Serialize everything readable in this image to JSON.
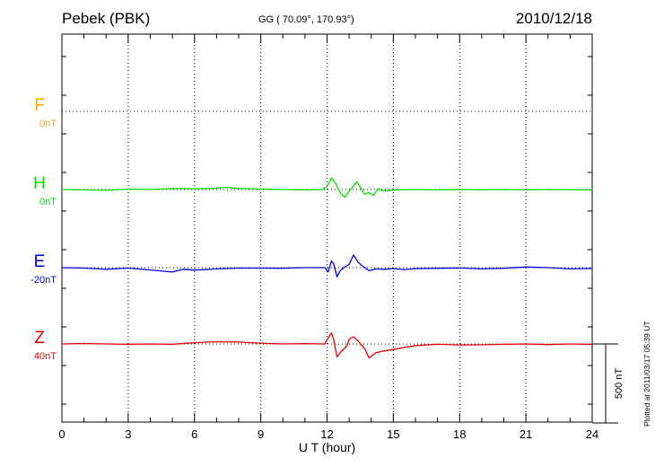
{
  "header": {
    "station": "Pebek (PBK)",
    "coords": "GG ( 70.09°, 170.93°)",
    "date": "2010/12/18"
  },
  "footer": {
    "plotted": "Plotted at 2011/03/17 05:39 UT"
  },
  "chart_data": {
    "type": "line",
    "xlabel": "U T (hour)",
    "xlim": [
      0,
      24
    ],
    "xticks": [
      0,
      3,
      6,
      9,
      12,
      15,
      18,
      21,
      24
    ],
    "scale_bar": {
      "label": "500 nT",
      "value_nT": 500
    },
    "series": [
      {
        "name": "F",
        "offset": "0nT",
        "color": "#FFA500",
        "values": []
      },
      {
        "name": "H",
        "offset": "0nT",
        "color": "#00E000",
        "points": [
          [
            0,
            0
          ],
          [
            2,
            -5
          ],
          [
            3,
            3
          ],
          [
            4,
            0
          ],
          [
            5,
            6
          ],
          [
            6,
            4
          ],
          [
            7,
            8
          ],
          [
            7.5,
            14
          ],
          [
            8,
            6
          ],
          [
            9,
            3
          ],
          [
            10,
            0
          ],
          [
            11,
            -3
          ],
          [
            11.8,
            0
          ],
          [
            12,
            20
          ],
          [
            12.2,
            72
          ],
          [
            12.4,
            36
          ],
          [
            12.6,
            -22
          ],
          [
            12.8,
            -50
          ],
          [
            13.0,
            -10
          ],
          [
            13.2,
            22
          ],
          [
            13.35,
            48
          ],
          [
            13.5,
            14
          ],
          [
            13.7,
            -30
          ],
          [
            13.9,
            -20
          ],
          [
            14.1,
            -38
          ],
          [
            14.3,
            4
          ],
          [
            14.5,
            -6
          ],
          [
            14.7,
            -8
          ],
          [
            15,
            -3
          ],
          [
            16,
            0
          ],
          [
            17,
            -3
          ],
          [
            18,
            0
          ],
          [
            19,
            -2
          ],
          [
            20,
            0
          ],
          [
            21,
            -2
          ],
          [
            22,
            0
          ],
          [
            24,
            -3
          ]
        ]
      },
      {
        "name": "E",
        "offset": "-20nT",
        "color": "#0000DD",
        "points": [
          [
            0,
            0
          ],
          [
            1,
            -3
          ],
          [
            2,
            -10
          ],
          [
            3,
            -3
          ],
          [
            4,
            -15
          ],
          [
            5,
            -28
          ],
          [
            5.5,
            -10
          ],
          [
            6,
            -16
          ],
          [
            7,
            -8
          ],
          [
            8,
            -3
          ],
          [
            9,
            -3
          ],
          [
            10,
            -4
          ],
          [
            11,
            0
          ],
          [
            11.9,
            0
          ],
          [
            12.05,
            -28
          ],
          [
            12.2,
            42
          ],
          [
            12.3,
            24
          ],
          [
            12.45,
            -58
          ],
          [
            12.6,
            -18
          ],
          [
            12.8,
            5
          ],
          [
            13,
            20
          ],
          [
            13.2,
            80
          ],
          [
            13.4,
            35
          ],
          [
            13.6,
            10
          ],
          [
            13.9,
            -20
          ],
          [
            14.2,
            -8
          ],
          [
            14.6,
            -10
          ],
          [
            15,
            -6
          ],
          [
            15.5,
            -12
          ],
          [
            16,
            -6
          ],
          [
            17,
            -4
          ],
          [
            18,
            -2
          ],
          [
            19,
            -8
          ],
          [
            20,
            -4
          ],
          [
            21,
            4
          ],
          [
            22,
            0
          ],
          [
            23,
            -8
          ],
          [
            24,
            -5
          ]
        ]
      },
      {
        "name": "Z",
        "offset": "40nT",
        "color": "#DD0000",
        "points": [
          [
            0,
            0
          ],
          [
            1,
            3
          ],
          [
            2,
            0
          ],
          [
            3,
            -2
          ],
          [
            4,
            0
          ],
          [
            5,
            -2
          ],
          [
            6,
            8
          ],
          [
            7,
            14
          ],
          [
            8,
            12
          ],
          [
            9,
            5
          ],
          [
            10,
            0
          ],
          [
            11,
            2
          ],
          [
            11.9,
            0
          ],
          [
            12.05,
            38
          ],
          [
            12.2,
            70
          ],
          [
            12.3,
            28
          ],
          [
            12.45,
            -82
          ],
          [
            12.65,
            -46
          ],
          [
            12.9,
            -12
          ],
          [
            13,
            30
          ],
          [
            13.2,
            45
          ],
          [
            13.4,
            20
          ],
          [
            13.7,
            -30
          ],
          [
            13.9,
            -88
          ],
          [
            14.2,
            -56
          ],
          [
            14.5,
            -46
          ],
          [
            15,
            -35
          ],
          [
            15.5,
            -22
          ],
          [
            16,
            -10
          ],
          [
            17,
            -2
          ],
          [
            18,
            -6
          ],
          [
            19,
            -5
          ],
          [
            20,
            -2
          ],
          [
            21,
            0
          ],
          [
            22,
            -4
          ],
          [
            23,
            0
          ],
          [
            24,
            -3
          ]
        ]
      }
    ]
  }
}
